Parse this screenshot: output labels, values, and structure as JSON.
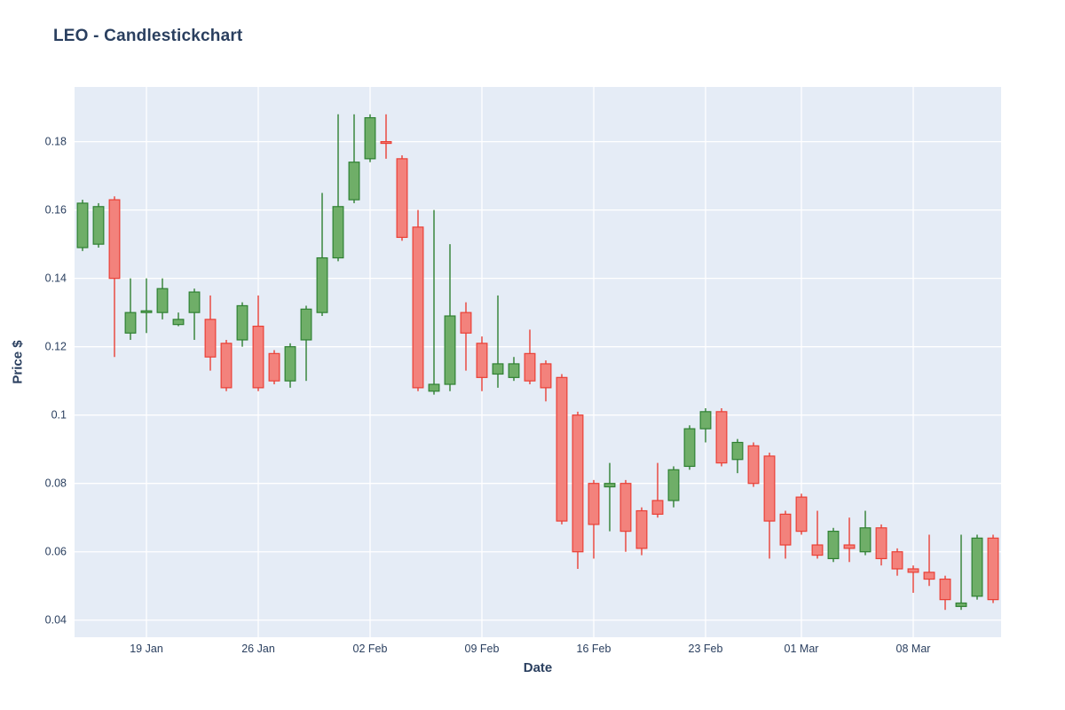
{
  "title": "LEO - Candlestickchart",
  "chart_data": {
    "type": "candlestick",
    "title": "LEO - Candlestickchart",
    "xlabel": "Date",
    "ylabel": "Price $",
    "ylim": [
      0.035,
      0.196
    ],
    "yticks": [
      0.04,
      0.06,
      0.08,
      0.1,
      0.12,
      0.14,
      0.16,
      0.18
    ],
    "xticks": [
      "19 Jan",
      "26 Jan",
      "02 Feb",
      "09 Feb",
      "16 Feb",
      "23 Feb",
      "01 Mar",
      "08 Mar"
    ],
    "grid": true,
    "legend": "none",
    "colors": {
      "plot_bg": "#e5ecf6",
      "grid": "#ffffff",
      "text": "#2a3f5f",
      "increasing_fill": "#6fae68",
      "increasing_line": "#2f8032",
      "decreasing_fill": "#f3827c",
      "decreasing_line": "#ea4036"
    },
    "candles": [
      {
        "date": "15 Jan",
        "open": 0.149,
        "high": 0.163,
        "low": 0.148,
        "close": 0.162
      },
      {
        "date": "16 Jan",
        "open": 0.15,
        "high": 0.162,
        "low": 0.149,
        "close": 0.161
      },
      {
        "date": "17 Jan",
        "open": 0.163,
        "high": 0.164,
        "low": 0.117,
        "close": 0.14
      },
      {
        "date": "18 Jan",
        "open": 0.124,
        "high": 0.14,
        "low": 0.122,
        "close": 0.13
      },
      {
        "date": "19 Jan",
        "open": 0.13,
        "high": 0.14,
        "low": 0.124,
        "close": 0.1305
      },
      {
        "date": "20 Jan",
        "open": 0.13,
        "high": 0.14,
        "low": 0.128,
        "close": 0.137
      },
      {
        "date": "21 Jan",
        "open": 0.1265,
        "high": 0.13,
        "low": 0.126,
        "close": 0.128
      },
      {
        "date": "22 Jan",
        "open": 0.13,
        "high": 0.137,
        "low": 0.122,
        "close": 0.136
      },
      {
        "date": "23 Jan",
        "open": 0.128,
        "high": 0.135,
        "low": 0.113,
        "close": 0.117
      },
      {
        "date": "24 Jan",
        "open": 0.121,
        "high": 0.122,
        "low": 0.107,
        "close": 0.108
      },
      {
        "date": "25 Jan",
        "open": 0.122,
        "high": 0.133,
        "low": 0.12,
        "close": 0.132
      },
      {
        "date": "26 Jan",
        "open": 0.126,
        "high": 0.135,
        "low": 0.107,
        "close": 0.108
      },
      {
        "date": "27 Jan",
        "open": 0.118,
        "high": 0.119,
        "low": 0.109,
        "close": 0.11
      },
      {
        "date": "28 Jan",
        "open": 0.11,
        "high": 0.121,
        "low": 0.108,
        "close": 0.12
      },
      {
        "date": "29 Jan",
        "open": 0.122,
        "high": 0.132,
        "low": 0.11,
        "close": 0.131
      },
      {
        "date": "30 Jan",
        "open": 0.13,
        "high": 0.165,
        "low": 0.129,
        "close": 0.146
      },
      {
        "date": "31 Jan",
        "open": 0.146,
        "high": 0.188,
        "low": 0.145,
        "close": 0.161
      },
      {
        "date": "01 Feb",
        "open": 0.163,
        "high": 0.188,
        "low": 0.162,
        "close": 0.174
      },
      {
        "date": "02 Feb",
        "open": 0.175,
        "high": 0.188,
        "low": 0.174,
        "close": 0.187
      },
      {
        "date": "03 Feb",
        "open": 0.18,
        "high": 0.188,
        "low": 0.175,
        "close": 0.1795
      },
      {
        "date": "04 Feb",
        "open": 0.175,
        "high": 0.176,
        "low": 0.151,
        "close": 0.152
      },
      {
        "date": "05 Feb",
        "open": 0.155,
        "high": 0.16,
        "low": 0.107,
        "close": 0.108
      },
      {
        "date": "06 Feb",
        "open": 0.107,
        "high": 0.16,
        "low": 0.106,
        "close": 0.109
      },
      {
        "date": "07 Feb",
        "open": 0.109,
        "high": 0.15,
        "low": 0.107,
        "close": 0.129
      },
      {
        "date": "08 Feb",
        "open": 0.13,
        "high": 0.133,
        "low": 0.113,
        "close": 0.124
      },
      {
        "date": "09 Feb",
        "open": 0.121,
        "high": 0.123,
        "low": 0.107,
        "close": 0.111
      },
      {
        "date": "10 Feb",
        "open": 0.112,
        "high": 0.135,
        "low": 0.108,
        "close": 0.115
      },
      {
        "date": "11 Feb",
        "open": 0.111,
        "high": 0.117,
        "low": 0.11,
        "close": 0.115
      },
      {
        "date": "12 Feb",
        "open": 0.118,
        "high": 0.125,
        "low": 0.109,
        "close": 0.11
      },
      {
        "date": "13 Feb",
        "open": 0.115,
        "high": 0.116,
        "low": 0.104,
        "close": 0.108
      },
      {
        "date": "14 Feb",
        "open": 0.111,
        "high": 0.112,
        "low": 0.068,
        "close": 0.069
      },
      {
        "date": "15 Feb",
        "open": 0.1,
        "high": 0.101,
        "low": 0.055,
        "close": 0.06
      },
      {
        "date": "16 Feb",
        "open": 0.08,
        "high": 0.081,
        "low": 0.058,
        "close": 0.068
      },
      {
        "date": "17 Feb",
        "open": 0.079,
        "high": 0.086,
        "low": 0.066,
        "close": 0.08
      },
      {
        "date": "18 Feb",
        "open": 0.08,
        "high": 0.081,
        "low": 0.06,
        "close": 0.066
      },
      {
        "date": "19 Feb",
        "open": 0.072,
        "high": 0.073,
        "low": 0.059,
        "close": 0.061
      },
      {
        "date": "20 Feb",
        "open": 0.075,
        "high": 0.086,
        "low": 0.07,
        "close": 0.071
      },
      {
        "date": "21 Feb",
        "open": 0.075,
        "high": 0.085,
        "low": 0.073,
        "close": 0.084
      },
      {
        "date": "22 Feb",
        "open": 0.085,
        "high": 0.097,
        "low": 0.084,
        "close": 0.096
      },
      {
        "date": "23 Feb",
        "open": 0.096,
        "high": 0.102,
        "low": 0.092,
        "close": 0.101
      },
      {
        "date": "24 Feb",
        "open": 0.101,
        "high": 0.102,
        "low": 0.085,
        "close": 0.086
      },
      {
        "date": "25 Feb",
        "open": 0.087,
        "high": 0.093,
        "low": 0.083,
        "close": 0.092
      },
      {
        "date": "26 Feb",
        "open": 0.091,
        "high": 0.092,
        "low": 0.079,
        "close": 0.08
      },
      {
        "date": "27 Feb",
        "open": 0.088,
        "high": 0.089,
        "low": 0.058,
        "close": 0.069
      },
      {
        "date": "28 Feb",
        "open": 0.071,
        "high": 0.072,
        "low": 0.058,
        "close": 0.062
      },
      {
        "date": "01 Mar",
        "open": 0.076,
        "high": 0.077,
        "low": 0.065,
        "close": 0.066
      },
      {
        "date": "02 Mar",
        "open": 0.062,
        "high": 0.072,
        "low": 0.058,
        "close": 0.059
      },
      {
        "date": "03 Mar",
        "open": 0.058,
        "high": 0.067,
        "low": 0.057,
        "close": 0.066
      },
      {
        "date": "04 Mar",
        "open": 0.062,
        "high": 0.07,
        "low": 0.057,
        "close": 0.061
      },
      {
        "date": "05 Mar",
        "open": 0.06,
        "high": 0.072,
        "low": 0.059,
        "close": 0.067
      },
      {
        "date": "06 Mar",
        "open": 0.067,
        "high": 0.068,
        "low": 0.056,
        "close": 0.058
      },
      {
        "date": "07 Mar",
        "open": 0.06,
        "high": 0.061,
        "low": 0.053,
        "close": 0.055
      },
      {
        "date": "08 Mar",
        "open": 0.055,
        "high": 0.056,
        "low": 0.048,
        "close": 0.054
      },
      {
        "date": "09 Mar",
        "open": 0.054,
        "high": 0.065,
        "low": 0.05,
        "close": 0.052
      },
      {
        "date": "10 Mar",
        "open": 0.052,
        "high": 0.053,
        "low": 0.043,
        "close": 0.046
      },
      {
        "date": "11 Mar",
        "open": 0.044,
        "high": 0.065,
        "low": 0.043,
        "close": 0.045
      },
      {
        "date": "12 Mar",
        "open": 0.047,
        "high": 0.065,
        "low": 0.046,
        "close": 0.064
      },
      {
        "date": "13 Mar",
        "open": 0.064,
        "high": 0.065,
        "low": 0.045,
        "close": 0.046
      }
    ]
  }
}
